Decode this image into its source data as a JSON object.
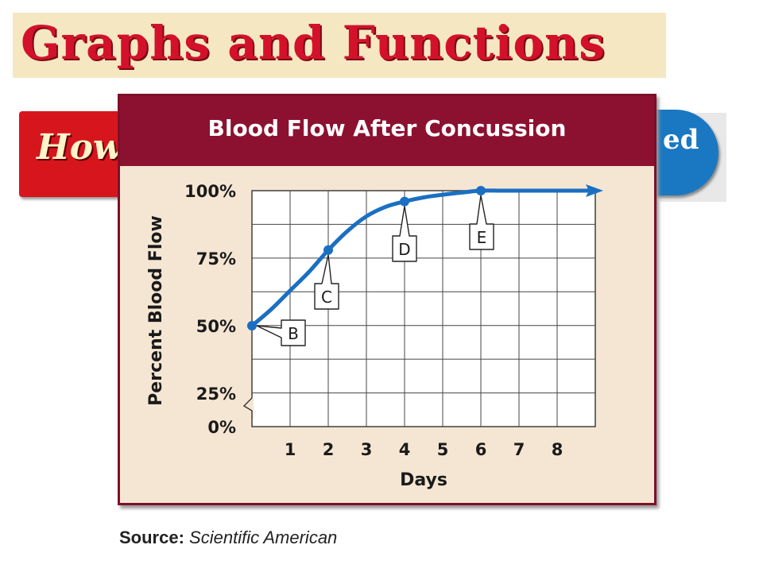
{
  "slide": {
    "title": "Graphs and Functions",
    "banner_left_text": "How",
    "banner_right_text": "ed",
    "source_label": "Source:",
    "source_value": "Scientific American"
  },
  "colors": {
    "title_red": "#d3112b",
    "header_maroon": "#8c1131",
    "panel_bg": "#f5e6d3",
    "curve_blue": "#1a6fc2",
    "badge_blue": "#1a78c2"
  },
  "chart_data": {
    "type": "line",
    "title": "Blood Flow After Concussion",
    "xlabel": "Days",
    "ylabel": "Percent Blood Flow",
    "x_ticks": [
      1,
      2,
      3,
      4,
      5,
      6,
      7,
      8
    ],
    "y_ticks": [
      "0%",
      "25%",
      "50%",
      "75%",
      "100%"
    ],
    "xlim": [
      0,
      9
    ],
    "ylim": [
      0,
      100
    ],
    "axis_break": true,
    "grid": true,
    "curve_x": [
      0,
      0.5,
      1,
      1.5,
      2,
      2.5,
      3,
      3.5,
      4,
      4.5,
      5,
      5.5,
      6,
      6.5,
      7,
      7.5,
      8,
      8.5,
      9
    ],
    "curve_y": [
      50,
      56,
      63,
      70,
      78,
      85,
      90.5,
      94,
      96,
      97.5,
      98.5,
      99.3,
      100,
      100,
      100,
      100,
      100,
      100,
      100
    ],
    "arrow_end": true,
    "points": [
      {
        "label": "B",
        "x": 0,
        "y": 50
      },
      {
        "label": "C",
        "x": 2,
        "y": 78
      },
      {
        "label": "D",
        "x": 4,
        "y": 96
      },
      {
        "label": "E",
        "x": 6,
        "y": 100
      }
    ]
  }
}
